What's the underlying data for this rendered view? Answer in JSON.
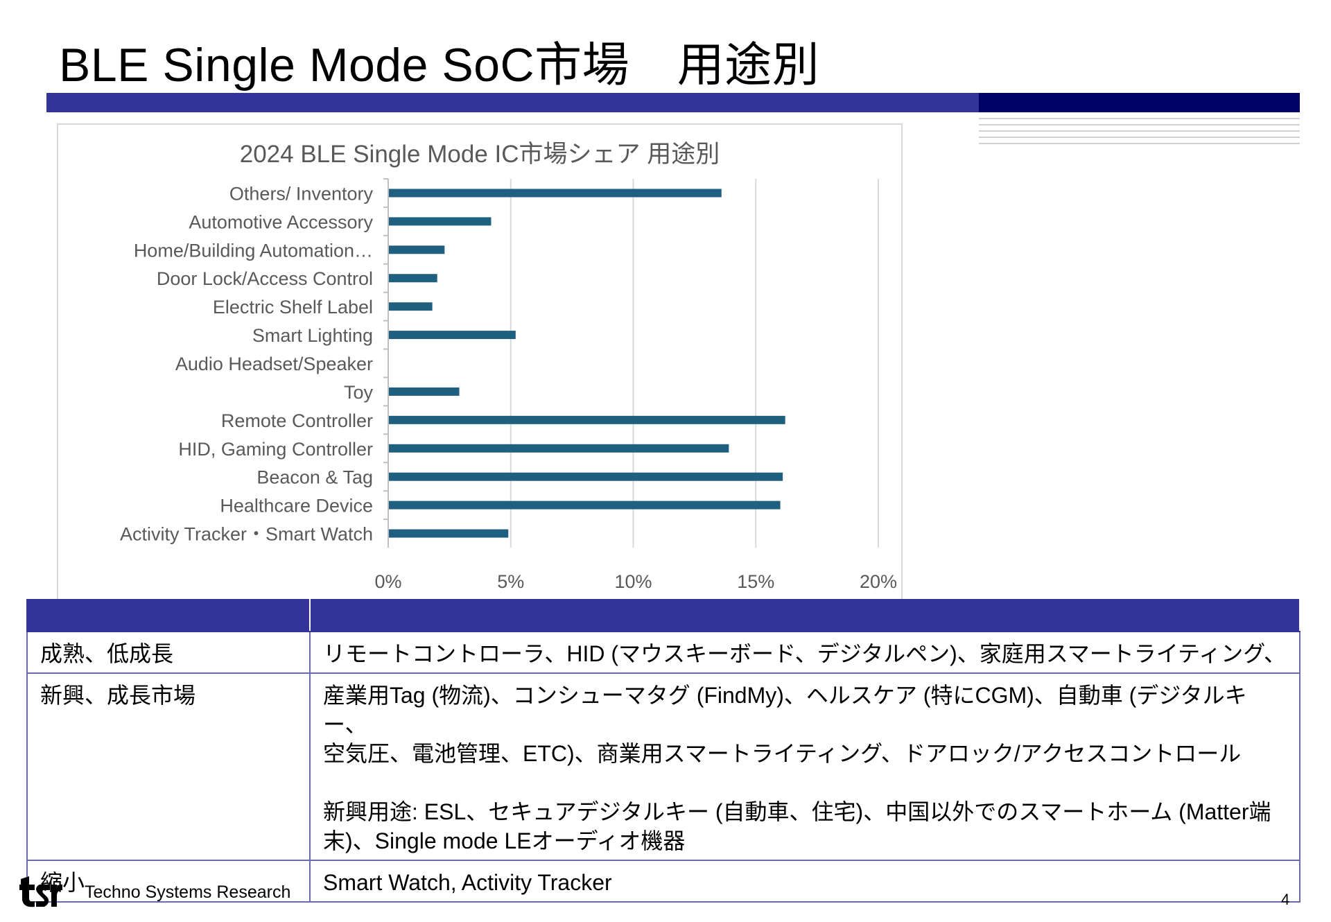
{
  "slide": {
    "title": "BLE Single Mode SoC市場　用途別",
    "page_number": "4",
    "footer_company": "Techno Systems Research"
  },
  "chart_data": {
    "type": "bar",
    "orientation": "horizontal",
    "title": "2024 BLE Single Mode IC市場シェア 用途別",
    "categories": [
      "Others/ Inventory",
      "Automotive Accessory",
      "Home/Building Automation…",
      "Door Lock/Access Control",
      "Electric Shelf Label",
      "Smart Lighting",
      "Audio Headset/Speaker",
      "Toy",
      "Remote Controller",
      "HID, Gaming Controller",
      "Beacon & Tag",
      "Healthcare Device",
      "Activity Tracker・Smart Watch"
    ],
    "values": [
      13.6,
      4.2,
      2.3,
      2.0,
      1.8,
      5.2,
      0,
      2.9,
      16.2,
      13.9,
      16.1,
      16.0,
      4.9
    ],
    "xlim": [
      0,
      20
    ],
    "xticks": [
      "0%",
      "5%",
      "10%",
      "15%",
      "20%"
    ],
    "xtick_values": [
      0,
      5,
      10,
      15,
      20
    ],
    "grid": true,
    "bar_color": "#1f5f7f"
  },
  "table": {
    "rows": [
      {
        "label": "成熟、低成長",
        "lines": [
          "リモートコントローラ、HID (マウスキーボード、デジタルペン)、家庭用スマートライティング、"
        ]
      },
      {
        "label": "新興、成長市場",
        "lines": [
          "産業用Tag (物流)、コンシューマタグ (FindMy)、ヘルスケア (特にCGM)、自動車 (デジタルキー、",
          "空気圧、電池管理、ETC)、商業用スマートライティング、ドアロック/アクセスコントロール"
        ],
        "lines2": [
          "新興用途: ESL、セキュアデジタルキー (自動車、住宅)、中国以外でのスマートホーム (Matter端",
          "末)、Single mode LEオーディオ機器"
        ]
      },
      {
        "label": "縮小",
        "lines": [
          "Smart Watch, Activity Tracker"
        ]
      }
    ]
  }
}
